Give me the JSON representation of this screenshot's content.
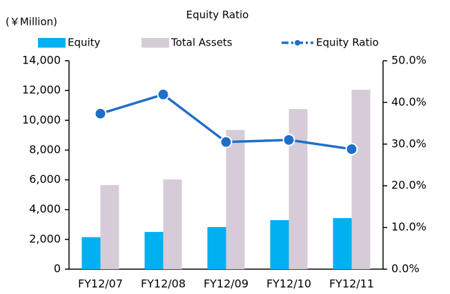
{
  "chart_data": {
    "type": "bar_line",
    "title": "Equity Ratio",
    "y_label": "(￥Million)",
    "categories": [
      "FY12/07",
      "FY12/08",
      "FY12/09",
      "FY12/10",
      "FY12/11"
    ],
    "series": [
      {
        "name": "Equity",
        "color": "#00b0f0",
        "values": [
          2150,
          2500,
          2830,
          3290,
          3430
        ]
      },
      {
        "name": "Total Assets",
        "color": "#d6ccd8",
        "values": [
          5650,
          6030,
          9350,
          10750,
          12050
        ]
      },
      {
        "name": "Equity Ratio",
        "color": "#1f6fc8",
        "axis": "y2",
        "values": [
          37.3,
          41.9,
          30.5,
          31.0,
          28.8
        ]
      }
    ],
    "ylim": [
      0,
      14000
    ],
    "yticks": [
      0,
      {
        "value": 2000,
        "label": "2,000"
      },
      {
        "value": 4000,
        "label": "4,000"
      },
      {
        "value": 6000,
        "label": "6,000"
      },
      {
        "value": 8000,
        "label": "8,000"
      },
      {
        "value": 10000,
        "label": "10,000"
      },
      {
        "value": 12000,
        "label": "12,000"
      },
      {
        "value": 14000,
        "label": "14,000"
      }
    ],
    "y2lim": [
      0,
      50
    ],
    "y2ticks": [
      {
        "value": 0,
        "label": "0.0%"
      },
      {
        "value": 10,
        "label": "10.0%"
      },
      {
        "value": 20,
        "label": "20.0%"
      },
      {
        "value": 30,
        "label": "30.0%"
      },
      {
        "value": 40,
        "label": "40.0%"
      },
      {
        "value": 50,
        "label": "50.0%"
      }
    ],
    "grid": false
  }
}
